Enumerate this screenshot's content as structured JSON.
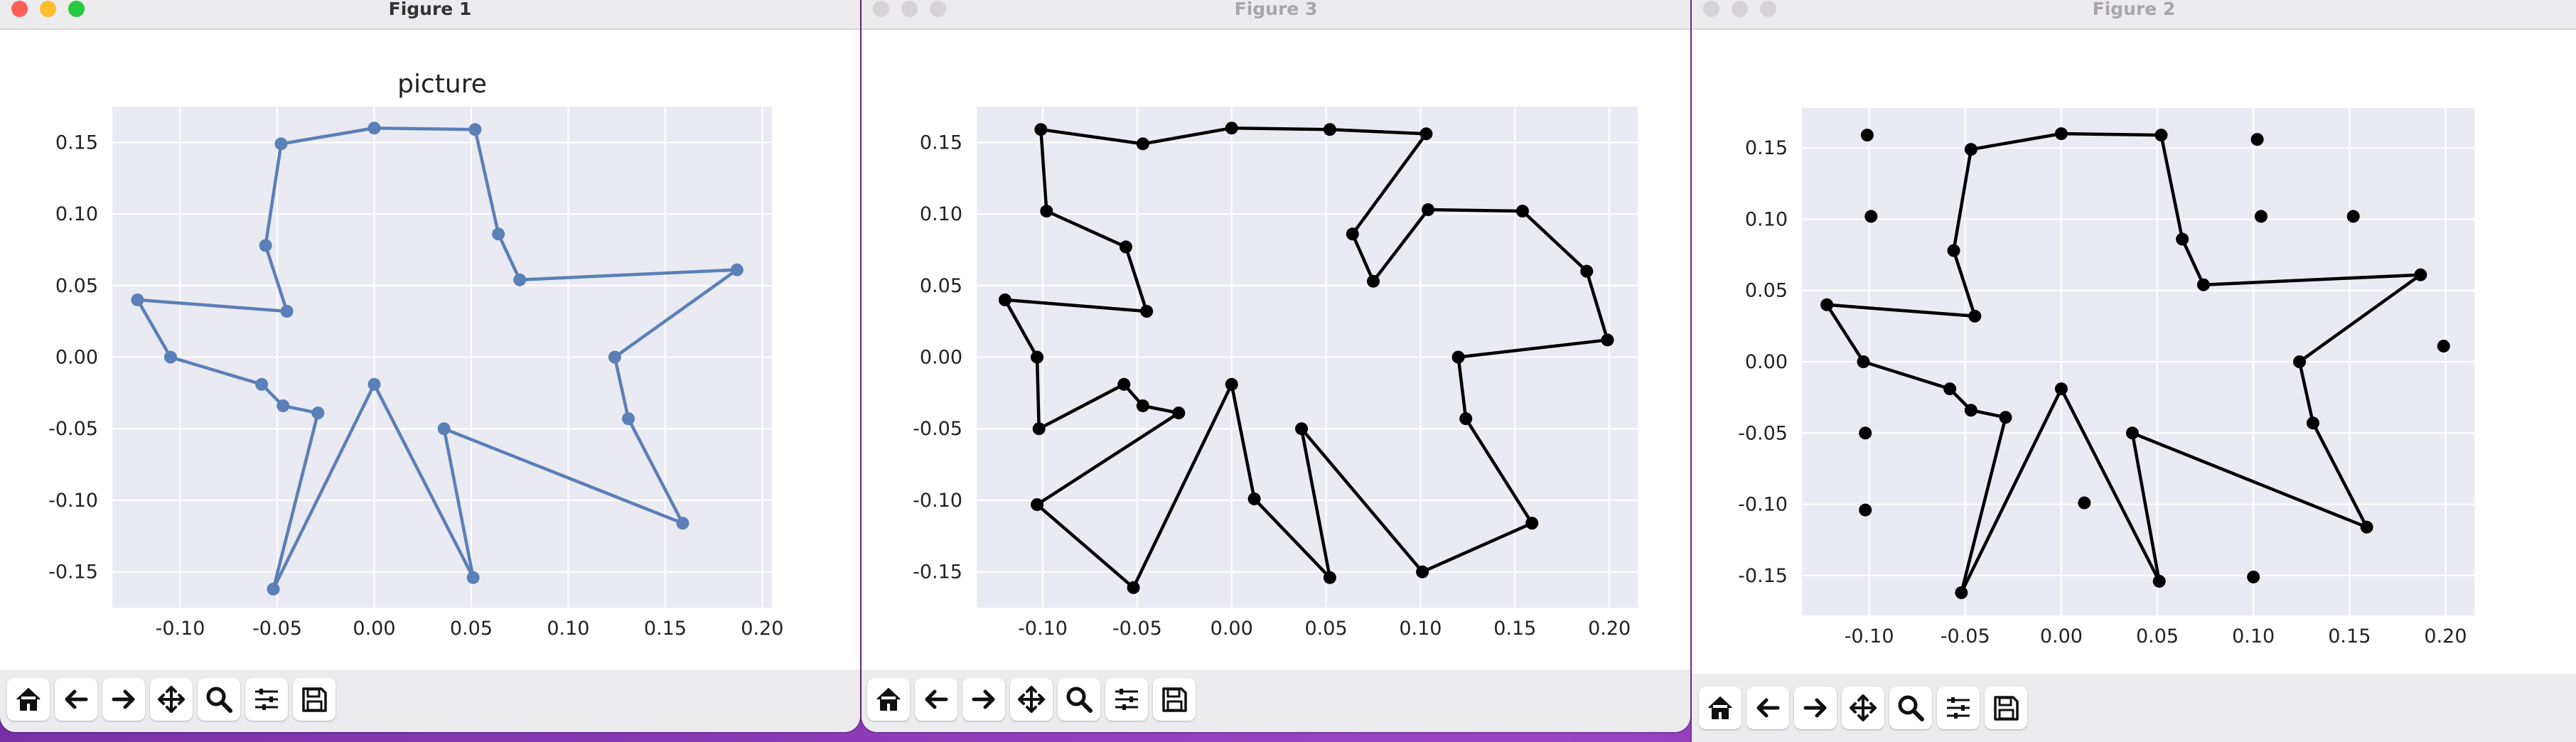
{
  "windows": [
    {
      "title": "Figure 1",
      "active": true,
      "chart_data": {
        "type": "line",
        "title": "picture",
        "line_color": "#5b7fb7",
        "grid": true,
        "xlim": [
          -0.135,
          0.205
        ],
        "ylim": [
          -0.175,
          0.175
        ],
        "xticks": [
          "-0.10",
          "-0.05",
          "0.00",
          "0.05",
          "0.10",
          "0.15",
          "0.20"
        ],
        "xtick_values": [
          -0.1,
          -0.05,
          0.0,
          0.05,
          0.1,
          0.15,
          0.2
        ],
        "yticks": [
          "0.15",
          "0.10",
          "0.05",
          "0.00",
          "-0.05",
          "-0.10",
          "-0.15"
        ],
        "ytick_values": [
          0.15,
          0.1,
          0.05,
          0.0,
          -0.05,
          -0.1,
          -0.15
        ],
        "series": [
          {
            "x": [
              -0.122,
              -0.105,
              -0.058,
              -0.047,
              -0.029,
              -0.052,
              0.0,
              0.051,
              0.036,
              0.159,
              0.131,
              0.124,
              0.187,
              0.075,
              0.064,
              0.052,
              0.0,
              -0.048,
              -0.056,
              -0.045,
              -0.122
            ],
            "y": [
              0.04,
              0.0,
              -0.019,
              -0.034,
              -0.039,
              -0.162,
              -0.019,
              -0.154,
              -0.05,
              -0.116,
              -0.043,
              0.0,
              0.061,
              0.054,
              0.086,
              0.159,
              0.16,
              0.149,
              0.078,
              0.032,
              0.04
            ]
          }
        ]
      }
    },
    {
      "title": "Figure 3",
      "active": false,
      "chart_data": {
        "type": "line",
        "title": "",
        "line_color": "#000000",
        "grid": true,
        "xlim": [
          -0.135,
          0.215
        ],
        "ylim": [
          -0.175,
          0.175
        ],
        "xticks": [
          "-0.10",
          "-0.05",
          "0.00",
          "0.05",
          "0.10",
          "0.15",
          "0.20"
        ],
        "xtick_values": [
          -0.1,
          -0.05,
          0.0,
          0.05,
          0.1,
          0.15,
          0.2
        ],
        "yticks": [
          "0.15",
          "0.10",
          "0.05",
          "0.00",
          "-0.05",
          "-0.10",
          "-0.15"
        ],
        "ytick_values": [
          0.15,
          0.1,
          0.05,
          0.0,
          -0.05,
          -0.1,
          -0.15
        ],
        "series": [
          {
            "x": [
              -0.101,
              -0.098,
              -0.056,
              -0.045,
              -0.12,
              -0.103,
              -0.102,
              -0.057,
              -0.047,
              -0.028,
              -0.103,
              -0.052,
              0.0,
              0.012,
              0.052,
              0.037,
              0.101,
              0.159,
              0.124,
              0.12,
              0.199,
              0.188,
              0.154,
              0.104,
              0.075,
              0.064,
              0.103,
              0.052,
              0.0,
              -0.047,
              -0.101
            ],
            "y": [
              0.159,
              0.102,
              0.077,
              0.032,
              0.04,
              0.0,
              -0.05,
              -0.019,
              -0.034,
              -0.039,
              -0.103,
              -0.161,
              -0.019,
              -0.099,
              -0.154,
              -0.05,
              -0.15,
              -0.116,
              -0.043,
              0.0,
              0.012,
              0.06,
              0.102,
              0.103,
              0.053,
              0.086,
              0.156,
              0.159,
              0.16,
              0.149,
              0.159
            ]
          }
        ]
      }
    },
    {
      "title": "Figure 2",
      "active": false,
      "chart_data": {
        "type": "line",
        "title": "",
        "line_color": "#000000",
        "grid": true,
        "xlim": [
          -0.135,
          0.215
        ],
        "ylim": [
          -0.178,
          0.178
        ],
        "xticks": [
          "-0.10",
          "-0.05",
          "0.00",
          "0.05",
          "0.10",
          "0.15",
          "0.20"
        ],
        "xtick_values": [
          -0.1,
          -0.05,
          0.0,
          0.05,
          0.1,
          0.15,
          0.2
        ],
        "yticks": [
          "0.15",
          "0.10",
          "0.05",
          "0.00",
          "-0.05",
          "-0.10",
          "-0.15"
        ],
        "ytick_values": [
          0.15,
          0.1,
          0.05,
          0.0,
          -0.05,
          -0.1,
          -0.15
        ],
        "series": [
          {
            "x": [
              -0.122,
              -0.103,
              -0.058,
              -0.047,
              -0.029,
              -0.052,
              0.0,
              0.051,
              0.037,
              0.159,
              0.131,
              0.124,
              0.187,
              0.074,
              0.063,
              0.052,
              0.0,
              -0.047,
              -0.056,
              -0.045,
              -0.122
            ],
            "y": [
              0.04,
              0.0,
              -0.019,
              -0.034,
              -0.039,
              -0.162,
              -0.019,
              -0.154,
              -0.05,
              -0.116,
              -0.043,
              0.0,
              0.061,
              0.054,
              0.086,
              0.159,
              0.16,
              0.149,
              0.078,
              0.032,
              0.04
            ]
          }
        ],
        "extra_points": {
          "x": [
            -0.101,
            -0.099,
            0.102,
            0.104,
            0.152,
            0.199,
            -0.102,
            -0.102,
            0.012,
            0.1
          ],
          "y": [
            0.159,
            0.102,
            0.156,
            0.102,
            0.102,
            0.011,
            -0.05,
            -0.104,
            -0.099,
            -0.151
          ]
        }
      }
    }
  ],
  "toolbar": {
    "buttons": [
      "home-icon",
      "back-icon",
      "forward-icon",
      "pan-icon",
      "zoom-icon",
      "configure-icon",
      "save-icon"
    ]
  },
  "traffic_lights": [
    "#ff5f57",
    "#febc2e",
    "#28c840"
  ]
}
